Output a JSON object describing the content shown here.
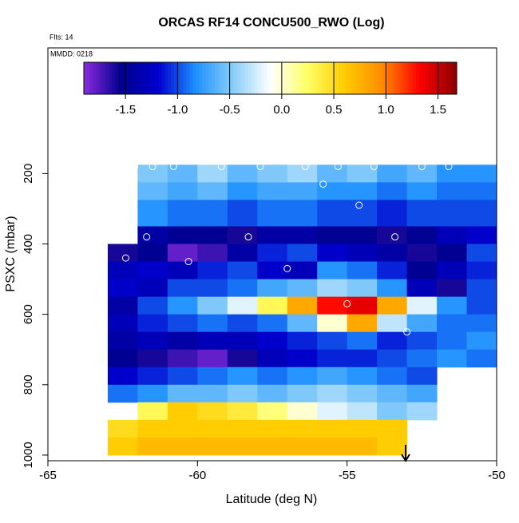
{
  "chart_data": {
    "type": "heatmap",
    "title": "ORCAS RF14 CONCU500_RWO (Log)",
    "flights_label": "Flts: 14",
    "date_label": "MMDD: 0218",
    "xlabel": "Latitude (deg N)",
    "ylabel": "PSXC (mbar)",
    "xlim": [
      -65,
      -50
    ],
    "ylim": [
      1016,
      -157
    ],
    "xticks": [
      -65,
      -60,
      -55,
      -50
    ],
    "yticks": [
      200,
      400,
      600,
      800,
      1000
    ],
    "x_bins": [
      -63,
      -62,
      -61,
      -60,
      -59,
      -58,
      -57,
      -56,
      -55,
      -54,
      -53,
      -52,
      -51,
      -50
    ],
    "y_bins": [
      175,
      225,
      275,
      350,
      400,
      450,
      500,
      550,
      600,
      650,
      700,
      750,
      800,
      850,
      900,
      950,
      1000
    ],
    "z": [
      [
        null,
        -0.5,
        -0.6,
        -0.4,
        -0.6,
        -0.5,
        -0.4,
        -0.6,
        -0.5,
        -0.7,
        -0.6,
        -0.8,
        -0.8
      ],
      [
        null,
        -0.6,
        -0.7,
        -0.6,
        -0.8,
        -0.7,
        -0.7,
        -0.8,
        -0.8,
        -0.9,
        -0.8,
        -0.9,
        -0.9
      ],
      [
        null,
        -0.8,
        -0.9,
        -0.9,
        -1.0,
        -0.9,
        -0.9,
        -1.0,
        -1.0,
        -1.1,
        -1.0,
        -1.0,
        -1.0
      ],
      [
        null,
        -1.4,
        -1.5,
        -1.5,
        -1.6,
        -1.4,
        -1.4,
        -1.5,
        -1.5,
        -1.6,
        -1.5,
        -1.3,
        -1.2
      ],
      [
        -1.6,
        -1.5,
        -1.8,
        -1.7,
        -1.4,
        -1.1,
        -1.0,
        -1.2,
        -1.3,
        -1.4,
        -1.6,
        -1.5,
        -1.0
      ],
      [
        -1.3,
        -1.2,
        -1.3,
        -1.1,
        -1.0,
        -1.2,
        -1.3,
        -0.8,
        -0.9,
        -1.1,
        -1.5,
        -1.3,
        -1.1
      ],
      [
        -1.2,
        -1.3,
        -1.0,
        -1.0,
        -0.9,
        -0.7,
        -0.6,
        -0.4,
        -0.5,
        -0.8,
        -1.3,
        -1.6,
        -1.0
      ],
      [
        -1.4,
        -1.0,
        -0.8,
        -0.5,
        -0.2,
        0.3,
        0.8,
        1.3,
        1.4,
        0.8,
        -0.2,
        -0.8,
        -1.0
      ],
      [
        -1.3,
        -1.1,
        -1.0,
        -0.9,
        -1.0,
        -0.9,
        -0.6,
        0.0,
        0.8,
        -0.3,
        -0.7,
        -0.9,
        -0.9
      ],
      [
        -1.4,
        -1.3,
        -1.4,
        -1.3,
        -1.3,
        -1.2,
        -1.1,
        -1.0,
        -0.9,
        -1.1,
        -1.0,
        -0.9,
        -0.8
      ],
      [
        -1.5,
        -1.6,
        -1.7,
        -1.8,
        -1.6,
        -1.3,
        -1.2,
        -1.1,
        -1.1,
        -1.0,
        -0.9,
        -0.8,
        -0.9
      ],
      [
        -1.2,
        -1.1,
        -1.0,
        -0.9,
        -0.8,
        -0.9,
        -0.8,
        -0.7,
        -0.8,
        -0.9,
        -1.0,
        null,
        null
      ],
      [
        -0.9,
        -0.8,
        -0.6,
        -0.6,
        -0.5,
        -0.6,
        -0.5,
        -0.4,
        -0.5,
        -0.6,
        -0.7,
        null,
        null
      ],
      [
        null,
        0.3,
        0.6,
        0.5,
        0.4,
        0.2,
        0.0,
        -0.2,
        -0.3,
        -0.5,
        -0.4,
        null,
        null
      ],
      [
        0.5,
        0.6,
        0.6,
        0.6,
        0.6,
        0.6,
        0.6,
        0.6,
        0.6,
        0.6,
        null,
        null,
        null
      ],
      [
        0.6,
        0.7,
        0.7,
        0.7,
        0.7,
        0.7,
        0.7,
        0.7,
        0.7,
        0.6,
        null,
        null,
        null
      ]
    ],
    "clim": [
      -1.9,
      1.68
    ],
    "colormap": [
      "#8a2be2",
      "#00008b",
      "#0000cd",
      "#1e90ff",
      "#87cefa",
      "#ffffff",
      "#ffff66",
      "#ffcc00",
      "#ff8c00",
      "#ff0000",
      "#8b0000"
    ],
    "cbar_ticks": [
      -1.5,
      {
        "value": -1.0,
        "label": "-1.0"
      },
      -0.5,
      {
        "value": 0.0,
        "label": "0.0"
      },
      0.5,
      {
        "value": 1.0,
        "label": "1.0"
      },
      1.5
    ],
    "points": {
      "x": [
        -62.1,
        -61.5,
        -60.8,
        -59.2,
        -57.9,
        -56.4,
        -55.3,
        -54.1,
        -52.5,
        -51.6,
        -55.8,
        -54.6,
        -61.7,
        -58.3,
        -53.4,
        -60.3,
        -62.4,
        -57.0,
        -55.0,
        -53.0
      ],
      "y": [
        180,
        180,
        180,
        180,
        180,
        180,
        180,
        180,
        180,
        180,
        230,
        290,
        380,
        380,
        380,
        450,
        440,
        470,
        570,
        650
      ]
    }
  }
}
